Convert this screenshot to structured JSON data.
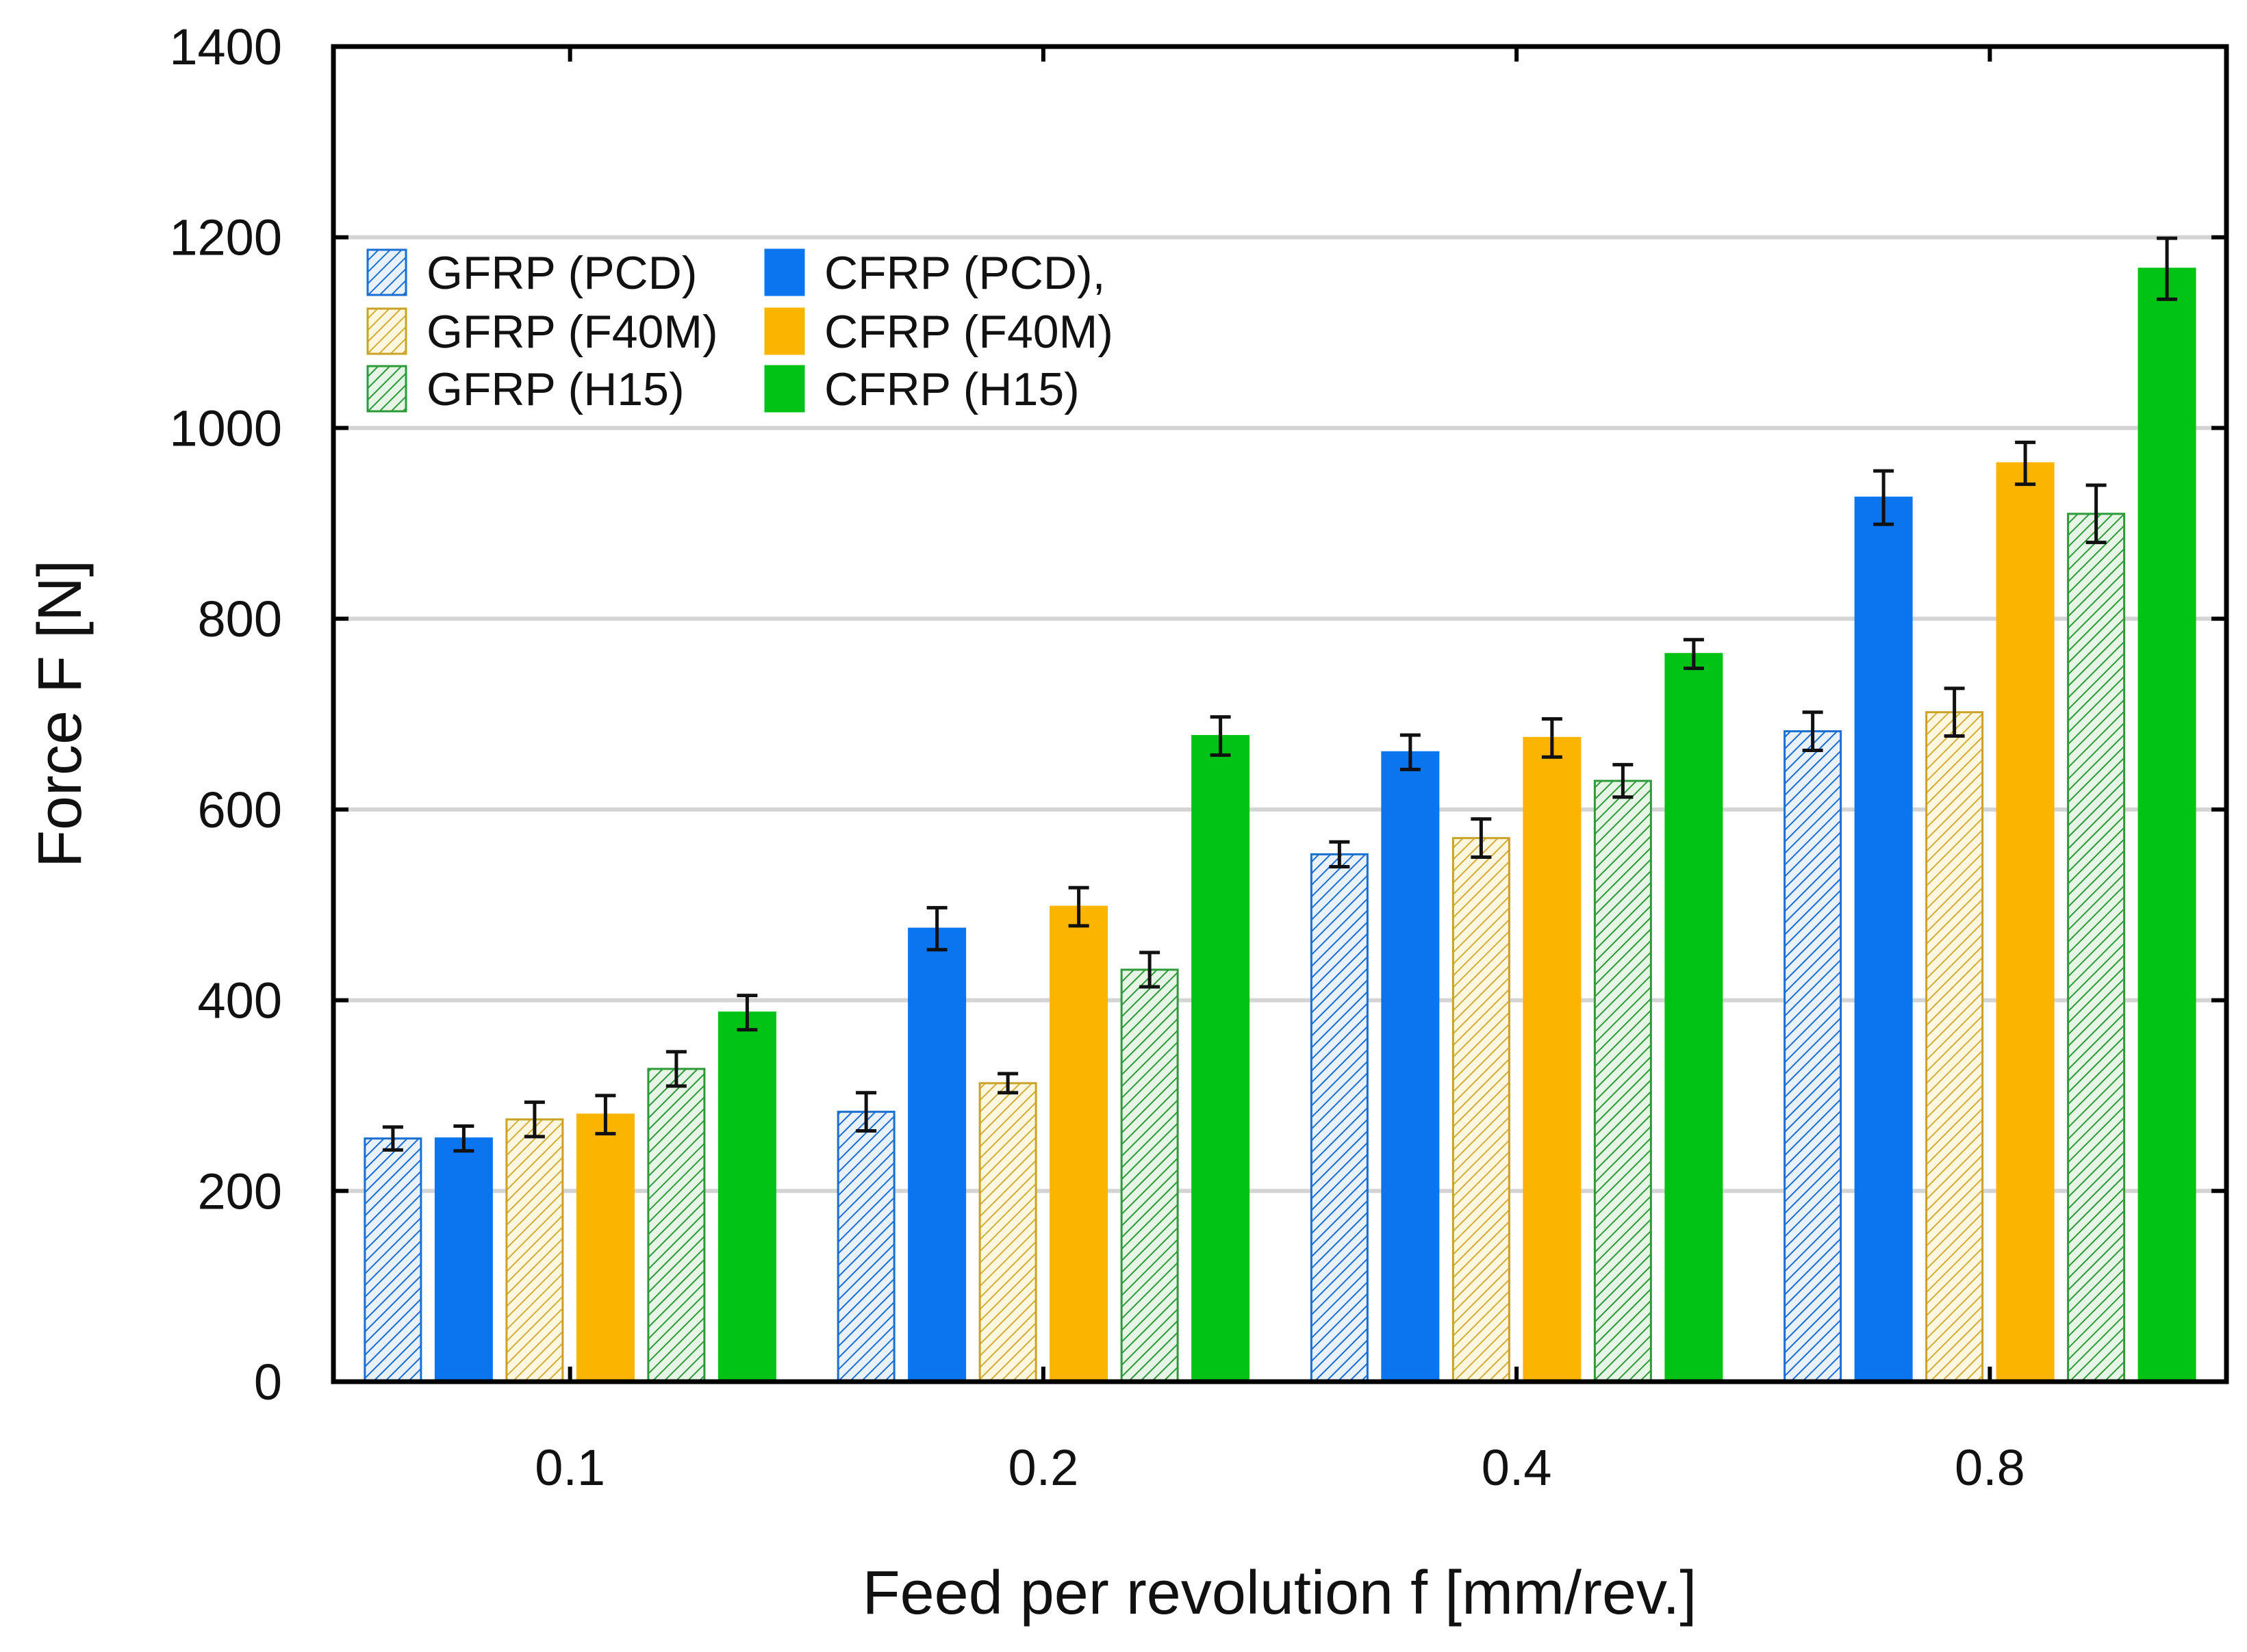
{
  "chart_data": {
    "type": "bar",
    "title": "",
    "xlabel": "Feed per revolution f [mm/rev.]",
    "ylabel": "Force F [N]",
    "ylim": [
      0,
      1400
    ],
    "yticks": [
      "0",
      "200",
      "400",
      "600",
      "800",
      "1000",
      "1200",
      "1400"
    ],
    "grid": "horizontal",
    "legend_position": "top-left",
    "categories": [
      "0.1",
      "0.2",
      "0.4",
      "0.8"
    ],
    "series": [
      {
        "name": "GFRP (PCD)",
        "color": "#1a6fd0",
        "fill": "hatch",
        "values": [
          255,
          283,
          553,
          682
        ],
        "errors": [
          12,
          20,
          13,
          20
        ]
      },
      {
        "name": "CFRP (PCD),",
        "color": "#0a75ef",
        "fill": "solid",
        "values": [
          255,
          475,
          660,
          927
        ],
        "errors": [
          13,
          22,
          18,
          28
        ]
      },
      {
        "name": "GFRP (F40M)",
        "color": "#c9a328",
        "fill": "hatch",
        "values": [
          275,
          313,
          570,
          702
        ],
        "errors": [
          18,
          10,
          20,
          25
        ]
      },
      {
        "name": "CFRP (F40M)",
        "color": "#fbb400",
        "fill": "solid",
        "values": [
          280,
          498,
          675,
          963
        ],
        "errors": [
          20,
          20,
          20,
          22
        ]
      },
      {
        "name": "GFRP (H15)",
        "color": "#2e9a3a",
        "fill": "hatch",
        "values": [
          328,
          432,
          630,
          910
        ],
        "errors": [
          18,
          18,
          17,
          30
        ]
      },
      {
        "name": "CFRP (H15)",
        "color": "#00c316",
        "fill": "solid",
        "values": [
          387,
          677,
          763,
          1167
        ],
        "errors": [
          18,
          20,
          15,
          32
        ]
      }
    ]
  }
}
